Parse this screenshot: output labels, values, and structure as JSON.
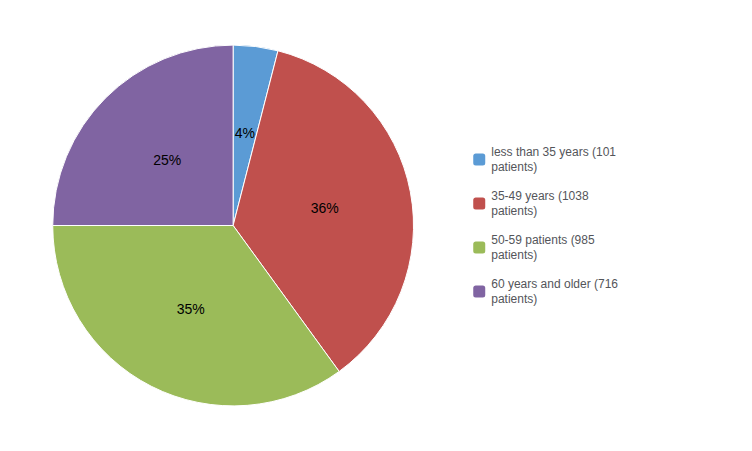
{
  "chart_data": {
    "type": "pie",
    "categories": [
      "less than 35 years (101\npatients)",
      "35-49 years (1038\npatients)",
      "50-59 patients (985\npatients)",
      "60 years and older (716\npatients)"
    ],
    "values": [
      4,
      36,
      35,
      25
    ],
    "value_labels": [
      "4%",
      "36%",
      "35%",
      "25%"
    ],
    "colors": [
      "#5b9bd5",
      "#c0504d",
      "#9bbb59",
      "#8064a2"
    ],
    "data_labels": true,
    "legend": "right"
  }
}
